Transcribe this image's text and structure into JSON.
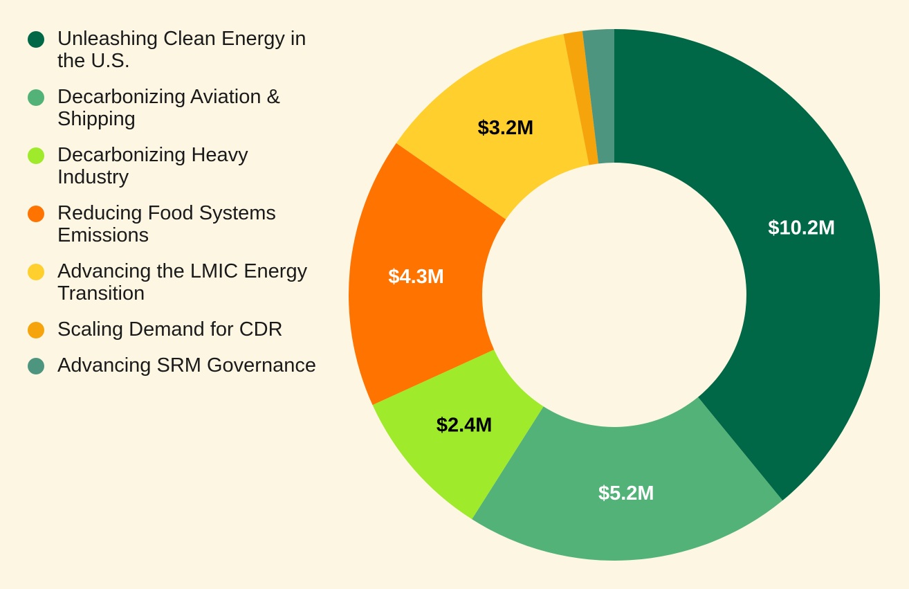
{
  "chart_data": {
    "type": "pie",
    "donut": true,
    "title": "",
    "legend_position": "left",
    "series": [
      {
        "name": "Unleashing Clean Energy in the U.S.",
        "value": 10.2,
        "label": "$10.2M",
        "color": "#006747",
        "label_color": "#ffffff"
      },
      {
        "name": "Decarbonizing Aviation & Shipping",
        "value": 5.2,
        "label": "$5.2M",
        "color": "#52b277",
        "label_color": "#ffffff"
      },
      {
        "name": "Decarbonizing Heavy Industry",
        "value": 2.4,
        "label": "$2.4M",
        "color": "#9fea2b",
        "label_color": "#000000"
      },
      {
        "name": "Reducing Food Systems Emissions",
        "value": 4.3,
        "label": "$4.3M",
        "color": "#ff7300",
        "label_color": "#ffffff"
      },
      {
        "name": "Advancing the LMIC Energy Transition",
        "value": 3.2,
        "label": "$3.2M",
        "color": "#fecf2d",
        "label_color": "#000000"
      },
      {
        "name": "Scaling Demand for CDR",
        "value": 0.3,
        "label": "",
        "color": "#f5a40c",
        "label_color": "#000000"
      },
      {
        "name": "Advancing SRM Governance",
        "value": 0.5,
        "label": "",
        "color": "#4e9580",
        "label_color": "#ffffff"
      }
    ]
  }
}
